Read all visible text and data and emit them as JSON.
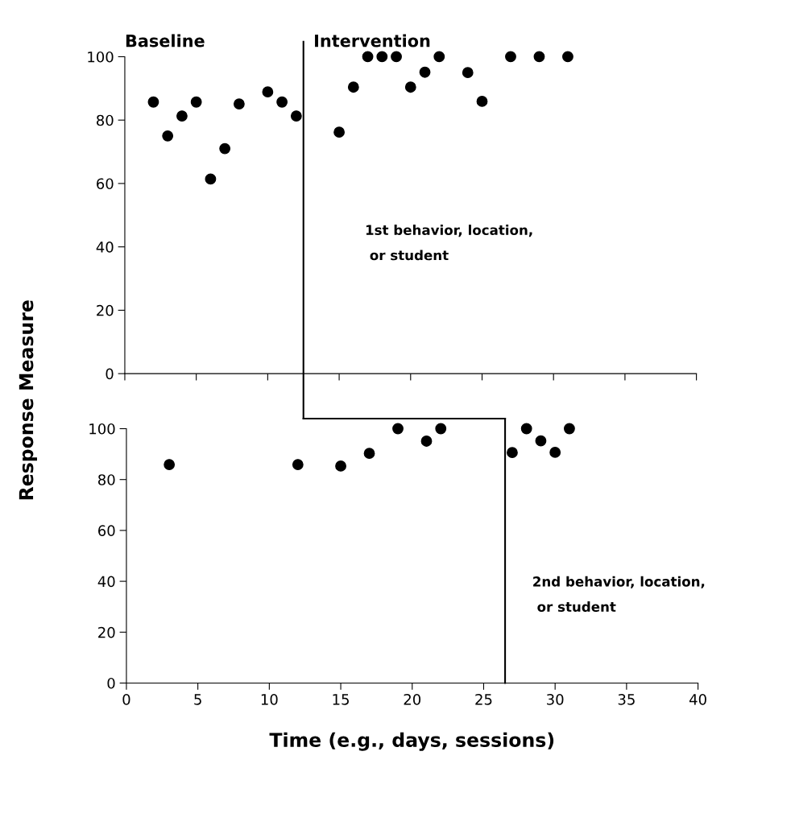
{
  "chart_data": [
    {
      "type": "scatter",
      "annotations": [
        "Baseline",
        "Intervention",
        "1st behavior, location,\n or student"
      ],
      "ylabel": "Response Measure",
      "x": [
        2,
        3,
        4,
        5,
        6,
        7,
        8,
        10,
        11,
        12,
        15,
        16,
        17,
        18,
        19,
        20,
        21,
        22,
        24,
        25,
        27,
        29,
        31
      ],
      "series": [
        {
          "color": "#000000",
          "values": [
            85.7,
            75,
            81.3,
            85.7,
            61.4,
            71,
            85.1,
            88.9,
            85.7,
            81.3,
            76.2,
            90.4,
            100,
            100,
            100,
            90.4,
            95.1,
            100,
            95,
            85.9,
            100,
            100,
            100
          ]
        }
      ],
      "xlim": [
        0,
        40
      ],
      "xticks": [
        0,
        5,
        10,
        15,
        20,
        25,
        30,
        35,
        40
      ],
      "ylim": [
        0,
        100
      ],
      "yticks": [
        0,
        20,
        40,
        60,
        80,
        100
      ],
      "tick_labels": "y",
      "marker": "circle",
      "grid": false,
      "ref_lines": [
        {
          "axis": "x",
          "value": 12.5,
          "color": "#000000",
          "line_style": "solid"
        }
      ]
    },
    {
      "type": "scatter",
      "annotations": [
        "2nd behavior, location,\n or student"
      ],
      "xlabel": "Time (e.g., days, sessions)",
      "x": [
        3,
        12,
        15,
        17,
        19,
        21,
        22,
        27,
        28,
        29,
        30,
        31
      ],
      "series": [
        {
          "color": "#000000",
          "values": [
            85.9,
            85.9,
            85.3,
            90.3,
            100,
            95.1,
            100,
            90.6,
            100,
            95.2,
            90.7,
            100
          ]
        }
      ],
      "xlim": [
        0,
        40
      ],
      "xticks": [
        0,
        5,
        10,
        15,
        20,
        25,
        30,
        35,
        40
      ],
      "ylim": [
        0,
        100
      ],
      "yticks": [
        0,
        20,
        40,
        60,
        80,
        100
      ],
      "marker": "circle",
      "grid": false,
      "ref_lines": [
        {
          "axis": "x",
          "value": 26.5,
          "color": "#000000",
          "line_style": "solid"
        }
      ]
    }
  ]
}
